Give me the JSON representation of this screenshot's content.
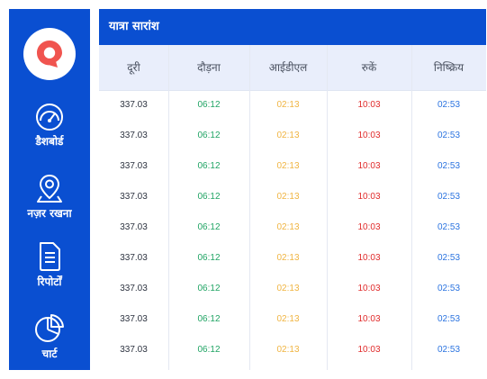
{
  "sidebar": {
    "logo": "location-pin-logo",
    "items": [
      {
        "label": "डैशबोर्ड",
        "icon": "speedometer-icon"
      },
      {
        "label": "नज़र रखना",
        "icon": "map-pin-icon"
      },
      {
        "label": "रिपोर्टों",
        "icon": "document-icon"
      },
      {
        "label": "चार्ट",
        "icon": "pie-chart-icon"
      }
    ]
  },
  "panel": {
    "title": "यात्रा सारांश",
    "columns": [
      "दूरी",
      "दौड़ना",
      "आईडीएल",
      "रुकें",
      "निष्क्रिय"
    ],
    "rows": [
      [
        "337.03",
        "06:12",
        "02:13",
        "10:03",
        "02:53"
      ],
      [
        "337.03",
        "06:12",
        "02:13",
        "10:03",
        "02:53"
      ],
      [
        "337.03",
        "06:12",
        "02:13",
        "10:03",
        "02:53"
      ],
      [
        "337.03",
        "06:12",
        "02:13",
        "10:03",
        "02:53"
      ],
      [
        "337.03",
        "06:12",
        "02:13",
        "10:03",
        "02:53"
      ],
      [
        "337.03",
        "06:12",
        "02:13",
        "10:03",
        "02:53"
      ],
      [
        "337.03",
        "06:12",
        "02:13",
        "10:03",
        "02:53"
      ],
      [
        "337.03",
        "06:12",
        "02:13",
        "10:03",
        "02:53"
      ],
      [
        "337.03",
        "06:12",
        "02:13",
        "10:03",
        "02:53"
      ]
    ]
  },
  "colors": {
    "brand_blue": "#0a4fd1",
    "logo_red": "#f0544f",
    "running": "#20a464",
    "idle": "#f0b441",
    "stopped": "#e02a2a",
    "inactive": "#2c74e0"
  }
}
